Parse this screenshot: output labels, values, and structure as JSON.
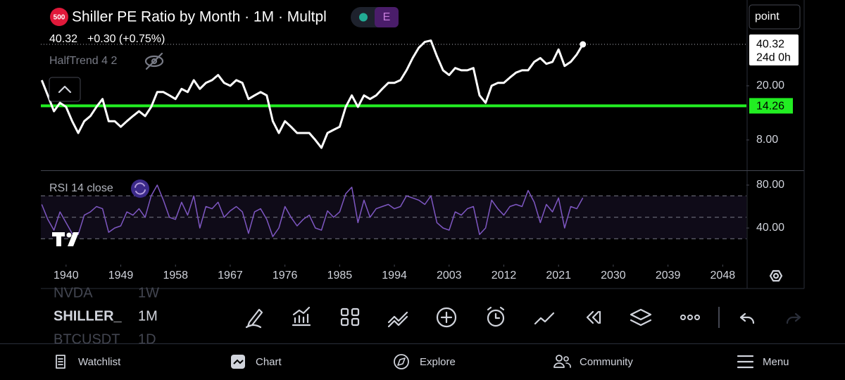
{
  "header": {
    "badge": "500",
    "indicator_badge": "E",
    "last": "40.32",
    "change": "+0.30 (+0.75%)",
    "scale_mode": "point",
    "countdown": "24d 0h"
  },
  "chart_data": [
    {
      "type": "line",
      "title": "Shiller PE Ratio by Month · 1M · Multpl",
      "indicator": "HalfTrend 4 2",
      "log_scale": true,
      "x": [
        1936,
        1937,
        1938,
        1939,
        1940,
        1941,
        1942,
        1943,
        1944,
        1945,
        1946,
        1947,
        1948,
        1949,
        1950,
        1951,
        1952,
        1953,
        1954,
        1955,
        1956,
        1957,
        1958,
        1959,
        1960,
        1961,
        1962,
        1963,
        1964,
        1965,
        1966,
        1967,
        1968,
        1969,
        1970,
        1971,
        1972,
        1973,
        1974,
        1975,
        1976,
        1977,
        1978,
        1979,
        1980,
        1981,
        1982,
        1983,
        1984,
        1985,
        1986,
        1987,
        1988,
        1989,
        1990,
        1991,
        1992,
        1993,
        1994,
        1995,
        1996,
        1997,
        1998,
        1999,
        2000,
        2001,
        2002,
        2003,
        2004,
        2005,
        2006,
        2007,
        2008,
        2009,
        2010,
        2011,
        2012,
        2013,
        2014,
        2015,
        2016,
        2017,
        2018,
        2019,
        2020,
        2021,
        2022,
        2023,
        2024,
        2025
      ],
      "series": [
        {
          "color": "#ffffff",
          "values": [
            22,
            17,
            13,
            15,
            14,
            11,
            9,
            11,
            12,
            14,
            16,
            11,
            11,
            10,
            11,
            12,
            13,
            12,
            14,
            18,
            18,
            17,
            16,
            19,
            18,
            22,
            19,
            21,
            22,
            24,
            21,
            20,
            22,
            21,
            16,
            17,
            18,
            17,
            11,
            9,
            11,
            10,
            9,
            9,
            9,
            8,
            7,
            9,
            9.5,
            10,
            14,
            17,
            14,
            17,
            16,
            17,
            19,
            21,
            21,
            22,
            26,
            32,
            38,
            42,
            43,
            33,
            26,
            24,
            27,
            26,
            26,
            27,
            17,
            15,
            20,
            21,
            21,
            23,
            25,
            26,
            26,
            30,
            32,
            29,
            30,
            37,
            28,
            30,
            34,
            40.32
          ]
        }
      ],
      "hline": {
        "value": 14.26,
        "label": "14.26",
        "color": "#22ee22"
      },
      "xlim": [
        1935.85,
        2051.9
      ],
      "xticks": [
        1940,
        1949,
        1958,
        1967,
        1976,
        1985,
        1994,
        2003,
        2012,
        2021,
        2030,
        2039,
        2048
      ],
      "ylim": [
        4.79,
        85.4
      ],
      "yticks": [
        {
          "value": 20,
          "label": "20.00"
        },
        {
          "value": 8,
          "label": "8.00"
        }
      ]
    },
    {
      "type": "line",
      "title": "RSI 14 close",
      "x": [
        1936,
        1937,
        1938,
        1939,
        1940,
        1941,
        1942,
        1943,
        1944,
        1945,
        1946,
        1947,
        1948,
        1949,
        1950,
        1951,
        1952,
        1953,
        1954,
        1955,
        1956,
        1957,
        1958,
        1959,
        1960,
        1961,
        1962,
        1963,
        1964,
        1965,
        1966,
        1967,
        1968,
        1969,
        1970,
        1971,
        1972,
        1973,
        1974,
        1975,
        1976,
        1977,
        1978,
        1979,
        1980,
        1981,
        1982,
        1983,
        1984,
        1985,
        1986,
        1987,
        1988,
        1989,
        1990,
        1991,
        1992,
        1993,
        1994,
        1995,
        1996,
        1997,
        1998,
        1999,
        2000,
        2001,
        2002,
        2003,
        2004,
        2005,
        2006,
        2007,
        2008,
        2009,
        2010,
        2011,
        2012,
        2013,
        2014,
        2015,
        2016,
        2017,
        2018,
        2019,
        2020,
        2021,
        2022,
        2023,
        2024,
        2025
      ],
      "series": [
        {
          "color": "#7e57c2",
          "values": [
            62,
            48,
            38,
            55,
            45,
            35,
            34,
            52,
            55,
            60,
            58,
            36,
            40,
            42,
            55,
            52,
            58,
            50,
            70,
            80,
            66,
            50,
            48,
            64,
            52,
            70,
            40,
            60,
            58,
            64,
            50,
            56,
            60,
            55,
            35,
            55,
            58,
            48,
            32,
            40,
            60,
            50,
            42,
            48,
            52,
            40,
            38,
            56,
            50,
            55,
            72,
            78,
            45,
            66,
            50,
            58,
            60,
            62,
            58,
            60,
            70,
            68,
            66,
            62,
            70,
            45,
            40,
            38,
            55,
            52,
            58,
            60,
            34,
            40,
            66,
            58,
            52,
            60,
            62,
            60,
            75,
            64,
            45,
            62,
            55,
            68,
            40,
            60,
            58,
            68
          ]
        }
      ],
      "levels": [
        70,
        50,
        30
      ],
      "xlim": [
        1935.85,
        2051.9
      ],
      "ylim": [
        6.6,
        93.1
      ],
      "yticks": [
        {
          "value": 80,
          "label": "80.00"
        },
        {
          "value": 40,
          "label": "40.00"
        }
      ]
    }
  ],
  "watchlist": [
    {
      "symbol": "NVDA",
      "interval": "1W"
    },
    {
      "symbol": "SHILLER_",
      "interval": "1M"
    },
    {
      "symbol": "BTCUSDT",
      "interval": "1D"
    }
  ],
  "nav": [
    "Watchlist",
    "Chart",
    "Explore",
    "Community",
    "Menu"
  ]
}
